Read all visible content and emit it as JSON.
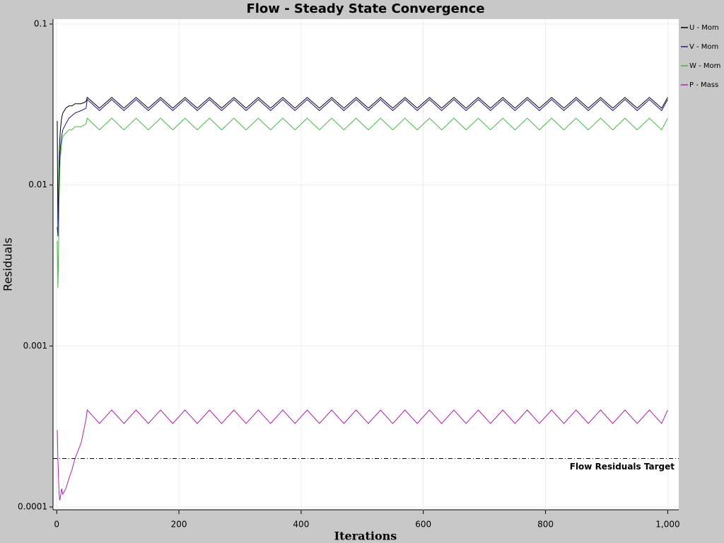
{
  "chart_data": {
    "type": "line",
    "title": "Flow - Steady State Convergence",
    "x_label": "Iterations",
    "y_label": "Residuals",
    "x": [
      1,
      2,
      3,
      4,
      5,
      6,
      8,
      10,
      15,
      20,
      25,
      30,
      40,
      48,
      50,
      70,
      90,
      110,
      130,
      150,
      170,
      190,
      210,
      230,
      250,
      270,
      290,
      310,
      330,
      350,
      370,
      390,
      410,
      430,
      450,
      470,
      490,
      510,
      530,
      550,
      570,
      590,
      610,
      630,
      650,
      670,
      690,
      710,
      730,
      750,
      770,
      790,
      810,
      830,
      850,
      870,
      890,
      910,
      930,
      950,
      970,
      990,
      1000
    ],
    "series": [
      {
        "name": "U - Mom",
        "color": "#000000",
        "values": [
          0.025,
          0.0055,
          0.009,
          0.014,
          0.019,
          0.022,
          0.026,
          0.028,
          0.03,
          0.031,
          0.031,
          0.032,
          0.032,
          0.033,
          0.035,
          0.03,
          0.035,
          0.03,
          0.035,
          0.03,
          0.035,
          0.03,
          0.035,
          0.03,
          0.035,
          0.03,
          0.035,
          0.03,
          0.035,
          0.03,
          0.035,
          0.03,
          0.035,
          0.03,
          0.035,
          0.03,
          0.035,
          0.03,
          0.035,
          0.03,
          0.035,
          0.03,
          0.035,
          0.03,
          0.035,
          0.03,
          0.035,
          0.03,
          0.035,
          0.03,
          0.035,
          0.03,
          0.035,
          0.03,
          0.035,
          0.03,
          0.035,
          0.03,
          0.035,
          0.03,
          0.035,
          0.03,
          0.035
        ]
      },
      {
        "name": "V - Mom",
        "color": "#1c1c8c",
        "values": [
          0.0055,
          0.0048,
          0.007,
          0.01,
          0.014,
          0.017,
          0.02,
          0.022,
          0.024,
          0.026,
          0.027,
          0.028,
          0.029,
          0.03,
          0.034,
          0.029,
          0.034,
          0.029,
          0.034,
          0.029,
          0.034,
          0.029,
          0.034,
          0.029,
          0.034,
          0.029,
          0.034,
          0.029,
          0.034,
          0.029,
          0.034,
          0.029,
          0.034,
          0.029,
          0.034,
          0.029,
          0.034,
          0.029,
          0.034,
          0.029,
          0.034,
          0.029,
          0.034,
          0.029,
          0.034,
          0.029,
          0.034,
          0.029,
          0.034,
          0.029,
          0.034,
          0.029,
          0.034,
          0.029,
          0.034,
          0.029,
          0.034,
          0.029,
          0.034,
          0.029,
          0.034,
          0.029,
          0.034
        ]
      },
      {
        "name": "W - Mom",
        "color": "#3cb83c",
        "values": [
          0.0045,
          0.0023,
          0.004,
          0.008,
          0.012,
          0.015,
          0.018,
          0.02,
          0.021,
          0.022,
          0.022,
          0.023,
          0.023,
          0.024,
          0.026,
          0.022,
          0.026,
          0.022,
          0.026,
          0.022,
          0.026,
          0.022,
          0.026,
          0.022,
          0.026,
          0.022,
          0.026,
          0.022,
          0.026,
          0.022,
          0.026,
          0.022,
          0.026,
          0.022,
          0.026,
          0.022,
          0.026,
          0.022,
          0.026,
          0.022,
          0.026,
          0.022,
          0.026,
          0.022,
          0.026,
          0.022,
          0.026,
          0.022,
          0.026,
          0.022,
          0.026,
          0.022,
          0.026,
          0.022,
          0.026,
          0.022,
          0.026,
          0.022,
          0.026,
          0.022,
          0.026,
          0.022,
          0.026
        ]
      },
      {
        "name": "P - Mass",
        "color": "#b020b0",
        "values": [
          0.0003,
          0.0002,
          0.00015,
          0.00012,
          0.00011,
          0.000115,
          0.00013,
          0.00012,
          0.00013,
          0.00015,
          0.00017,
          0.0002,
          0.00025,
          0.00035,
          0.0004,
          0.00033,
          0.0004,
          0.00033,
          0.0004,
          0.00033,
          0.0004,
          0.00033,
          0.0004,
          0.00033,
          0.0004,
          0.00033,
          0.0004,
          0.00033,
          0.0004,
          0.00033,
          0.0004,
          0.00033,
          0.0004,
          0.00033,
          0.0004,
          0.00033,
          0.0004,
          0.00033,
          0.0004,
          0.00033,
          0.0004,
          0.00033,
          0.0004,
          0.00033,
          0.0004,
          0.00033,
          0.0004,
          0.00033,
          0.0004,
          0.00033,
          0.0004,
          0.00033,
          0.0004,
          0.00033,
          0.0004,
          0.00033,
          0.0004,
          0.00033,
          0.0004,
          0.00033,
          0.0004,
          0.00033,
          0.0004
        ]
      }
    ],
    "target": {
      "label": "Flow Residuals Target",
      "value": 0.0002
    },
    "xlim": [
      -6,
      1018
    ],
    "xticks": [
      0,
      200,
      400,
      600,
      800,
      {
        "value": 1000,
        "label": "1,000"
      }
    ],
    "ylim": [
      0.0001,
      0.1
    ],
    "yticks": [
      0.0001,
      0.001,
      0.01,
      0.1
    ],
    "log_y": true,
    "grid": true,
    "legend": "right"
  }
}
